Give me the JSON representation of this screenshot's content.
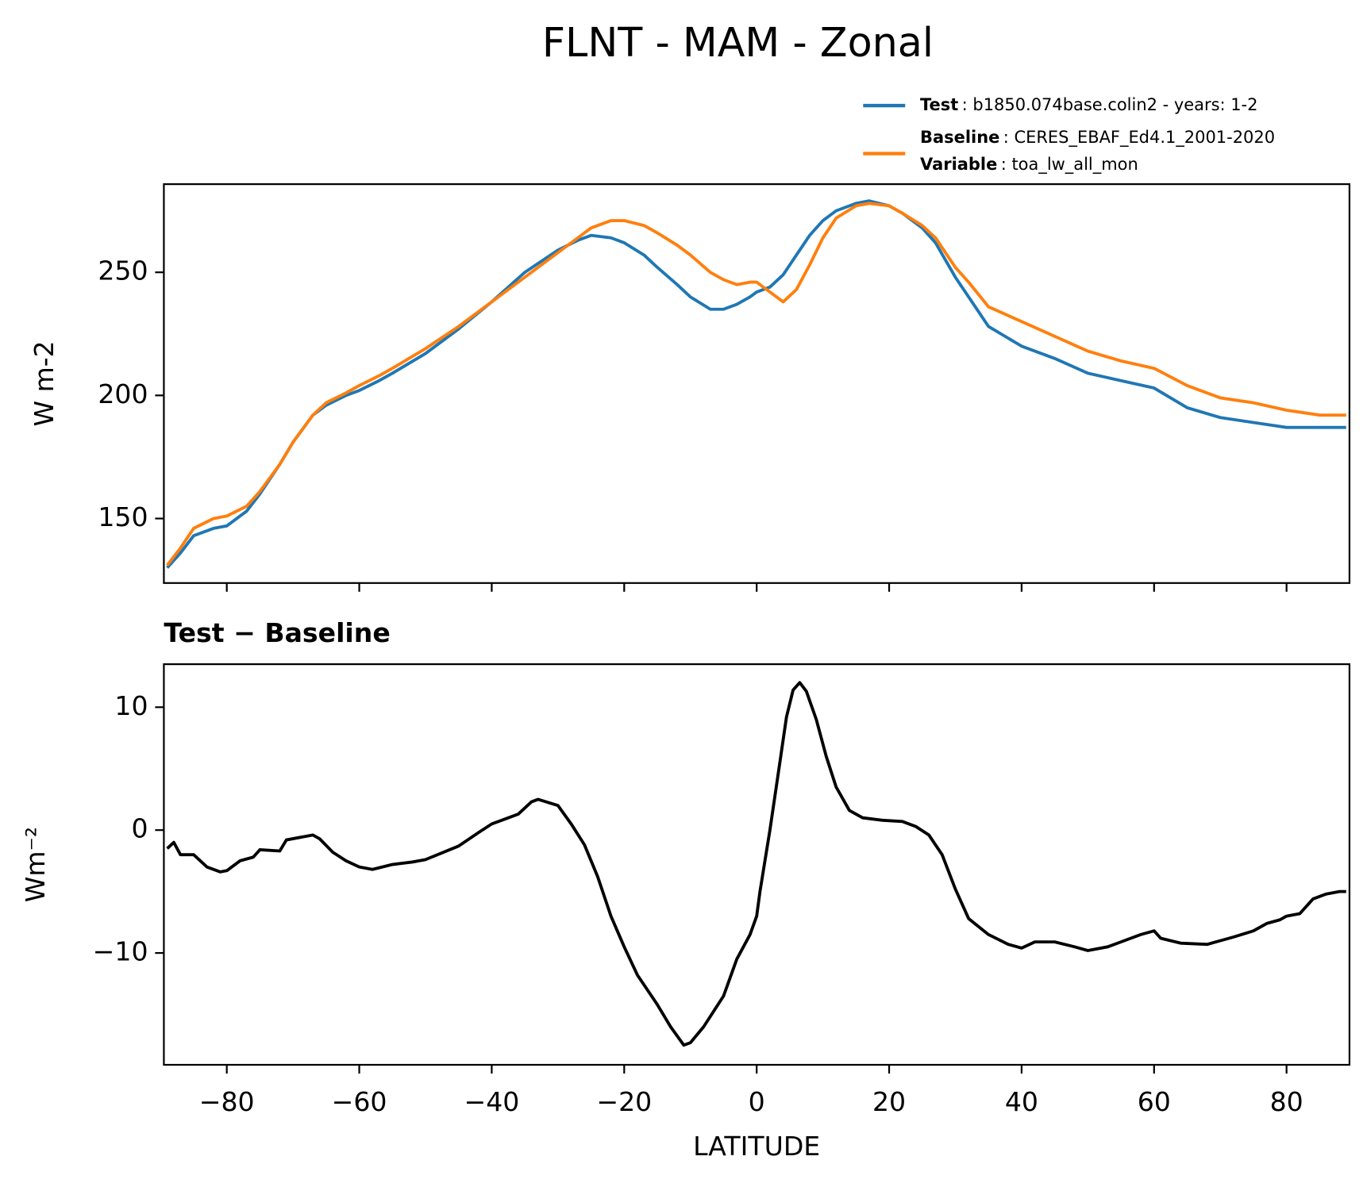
{
  "title": "FLNT - MAM - Zonal",
  "chart_data": [
    {
      "type": "line",
      "ylabel": "W m-2",
      "x": [
        -89,
        -87,
        -85,
        -82,
        -80,
        -77,
        -75,
        -72,
        -70,
        -67,
        -65,
        -62,
        -60,
        -57,
        -55,
        -50,
        -45,
        -40,
        -35,
        -30,
        -27,
        -25,
        -22,
        -20,
        -17,
        -15,
        -12,
        -10,
        -7,
        -5,
        -3,
        -1,
        0,
        2,
        4,
        6,
        8,
        10,
        12,
        15,
        17,
        20,
        22,
        25,
        27,
        30,
        32,
        35,
        40,
        45,
        50,
        55,
        60,
        65,
        70,
        75,
        80,
        85,
        89
      ],
      "series": [
        {
          "name": "Test",
          "description": ": b1850.074base.colin2 - years: 1-2",
          "color": "#1f77b4",
          "values": [
            130,
            136,
            143,
            146,
            147,
            153,
            160,
            172,
            181,
            192,
            196,
            200,
            202,
            206,
            209,
            217,
            227,
            238,
            250,
            259,
            263,
            265,
            264,
            262,
            257,
            252,
            245,
            240,
            235,
            235,
            237,
            240,
            242,
            244,
            249,
            257,
            265,
            271,
            275,
            278,
            279,
            277,
            274,
            268,
            262,
            248,
            240,
            228,
            220,
            215,
            209,
            206,
            203,
            195,
            191,
            189,
            187,
            187,
            187
          ]
        },
        {
          "name": "Baseline",
          "description": ": CERES_EBAF_Ed4.1_2001-2020",
          "color": "#ff7f0e",
          "values": [
            131,
            138,
            146,
            150,
            151,
            155,
            161,
            172,
            181,
            192,
            197,
            201,
            204,
            208,
            211,
            219,
            228,
            238,
            248,
            258,
            264,
            268,
            271,
            271,
            269,
            266,
            261,
            257,
            250,
            247,
            245,
            246,
            246,
            242,
            238,
            243,
            253,
            264,
            272,
            277,
            278,
            277,
            274,
            269,
            264,
            252,
            246,
            236,
            230,
            224,
            218,
            214,
            211,
            204,
            199,
            197,
            194,
            192,
            192
          ]
        }
      ],
      "legend_extra": {
        "name": "Variable",
        "description": ": toa_lw_all_mon"
      },
      "xlim": [
        -89.5,
        89.5
      ],
      "xticks": [
        -80,
        -60,
        -40,
        -20,
        0,
        20,
        40,
        60,
        80
      ],
      "ylim": [
        123.8,
        285.8
      ],
      "yticks": [
        150,
        200,
        250
      ]
    },
    {
      "type": "line",
      "title": "Test − Baseline",
      "xlabel": "LATITUDE",
      "ylabel": "Wm⁻²",
      "x": [
        -89,
        -88,
        -87,
        -85,
        -83,
        -81,
        -80,
        -78,
        -76,
        -75,
        -72,
        -71,
        -67,
        -66,
        -64,
        -62,
        -60,
        -58,
        -55,
        -52,
        -50,
        -45,
        -42,
        -40,
        -36,
        -34,
        -33,
        -30,
        -28,
        -26,
        -24,
        -22,
        -20,
        -18,
        -15,
        -13,
        -11,
        -10,
        -8,
        -5,
        -3,
        -1,
        0,
        0.5,
        2,
        3.5,
        4.5,
        5.5,
        6.5,
        7.5,
        9,
        10.5,
        12,
        14,
        16,
        19,
        22,
        24,
        26,
        28,
        30,
        32,
        35,
        38,
        40,
        42,
        45,
        48,
        50,
        53,
        55,
        58,
        60,
        61,
        64,
        68,
        70,
        72,
        75,
        77,
        79,
        80,
        82,
        84,
        86,
        88,
        89
      ],
      "series": [
        {
          "color": "#000000",
          "values": [
            -1.5,
            -1,
            -2,
            -2,
            -3,
            -3.4,
            -3.3,
            -2.5,
            -2.2,
            -1.6,
            -1.7,
            -0.8,
            -0.4,
            -0.7,
            -1.8,
            -2.5,
            -3,
            -3.2,
            -2.8,
            -2.6,
            -2.4,
            -1.3,
            -0.2,
            0.5,
            1.3,
            2.3,
            2.5,
            2,
            0.5,
            -1.2,
            -3.8,
            -7,
            -9.5,
            -11.8,
            -14.2,
            -16,
            -17.5,
            -17.3,
            -16,
            -13.5,
            -10.5,
            -8.5,
            -7,
            -5,
            0,
            5.5,
            9.2,
            11.4,
            12,
            11.3,
            9,
            6,
            3.5,
            1.6,
            1,
            0.8,
            0.7,
            0.3,
            -0.4,
            -2,
            -4.8,
            -7.2,
            -8.5,
            -9.3,
            -9.6,
            -9.1,
            -9.1,
            -9.5,
            -9.8,
            -9.5,
            -9.1,
            -8.5,
            -8.2,
            -8.8,
            -9.2,
            -9.3,
            -9,
            -8.7,
            -8.2,
            -7.6,
            -7.3,
            -7,
            -6.8,
            -5.6,
            -5.2,
            -5,
            -5
          ]
        }
      ],
      "xlim": [
        -89.5,
        89.5
      ],
      "xticks": [
        {
          "value": -80,
          "label": "−80"
        },
        {
          "value": -60,
          "label": "−60"
        },
        {
          "value": -40,
          "label": "−40"
        },
        {
          "value": -20,
          "label": "−20"
        },
        0,
        20,
        40,
        60,
        80
      ],
      "ylim": [
        -19.1,
        13.5
      ],
      "yticks": [
        {
          "value": -10,
          "label": "−10"
        },
        0,
        10
      ]
    }
  ]
}
